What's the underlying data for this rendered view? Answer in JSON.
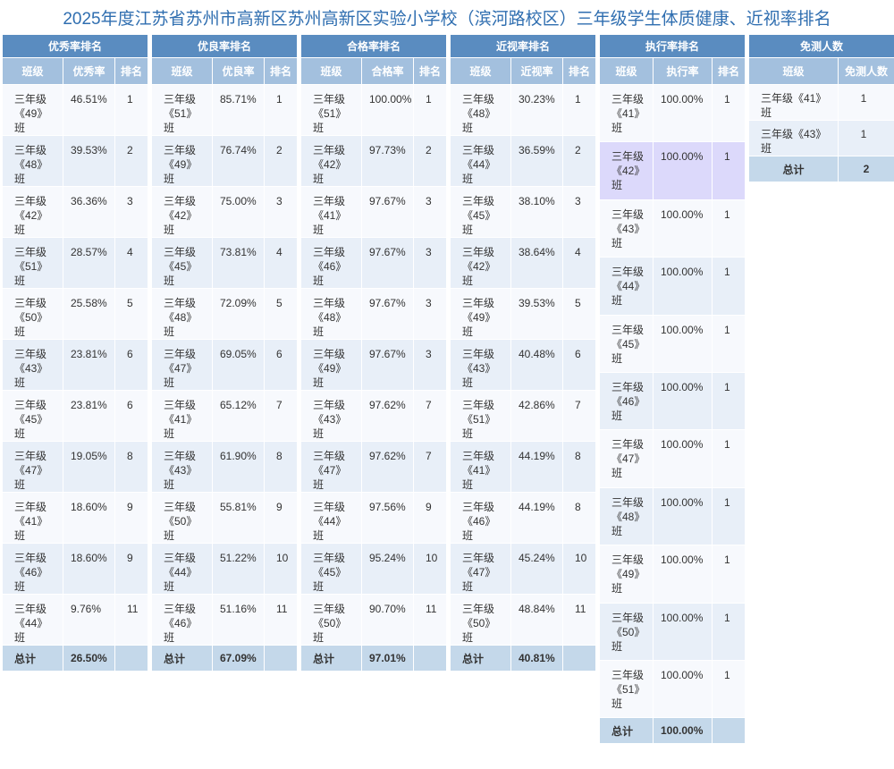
{
  "title": "2025年度江苏省苏州市高新区苏州高新区实验小学校（滨河路校区）三年级学生体质健康、近视率排名",
  "tables": [
    {
      "title": "优秀率排名",
      "headers": [
        "班级",
        "优秀率",
        "排名"
      ],
      "rows": [
        [
          "三年级《49》班",
          "46.51%",
          "1"
        ],
        [
          "三年级《48》班",
          "39.53%",
          "2"
        ],
        [
          "三年级《42》班",
          "36.36%",
          "3"
        ],
        [
          "三年级《51》班",
          "28.57%",
          "4"
        ],
        [
          "三年级《50》班",
          "25.58%",
          "5"
        ],
        [
          "三年级《43》班",
          "23.81%",
          "6"
        ],
        [
          "三年级《45》班",
          "23.81%",
          "6"
        ],
        [
          "三年级《47》班",
          "19.05%",
          "8"
        ],
        [
          "三年级《41》班",
          "18.60%",
          "9"
        ],
        [
          "三年级《46》班",
          "18.60%",
          "9"
        ],
        [
          "三年级《44》班",
          "9.76%",
          "11"
        ]
      ],
      "total": [
        "总计",
        "26.50%"
      ]
    },
    {
      "title": "优良率排名",
      "headers": [
        "班级",
        "优良率",
        "排名"
      ],
      "rows": [
        [
          "三年级《51》班",
          "85.71%",
          "1"
        ],
        [
          "三年级《49》班",
          "76.74%",
          "2"
        ],
        [
          "三年级《42》班",
          "75.00%",
          "3"
        ],
        [
          "三年级《45》班",
          "73.81%",
          "4"
        ],
        [
          "三年级《48》班",
          "72.09%",
          "5"
        ],
        [
          "三年级《47》班",
          "69.05%",
          "6"
        ],
        [
          "三年级《41》班",
          "65.12%",
          "7"
        ],
        [
          "三年级《43》班",
          "61.90%",
          "8"
        ],
        [
          "三年级《50》班",
          "55.81%",
          "9"
        ],
        [
          "三年级《44》班",
          "51.22%",
          "10"
        ],
        [
          "三年级《46》班",
          "51.16%",
          "11"
        ]
      ],
      "total": [
        "总计",
        "67.09%"
      ]
    },
    {
      "title": "合格率排名",
      "headers": [
        "班级",
        "合格率",
        "排名"
      ],
      "rows": [
        [
          "三年级《51》班",
          "100.00%",
          "1"
        ],
        [
          "三年级《42》班",
          "97.73%",
          "2"
        ],
        [
          "三年级《41》班",
          "97.67%",
          "3"
        ],
        [
          "三年级《46》班",
          "97.67%",
          "3"
        ],
        [
          "三年级《48》班",
          "97.67%",
          "3"
        ],
        [
          "三年级《49》班",
          "97.67%",
          "3"
        ],
        [
          "三年级《43》班",
          "97.62%",
          "7"
        ],
        [
          "三年级《47》班",
          "97.62%",
          "7"
        ],
        [
          "三年级《44》班",
          "97.56%",
          "9"
        ],
        [
          "三年级《45》班",
          "95.24%",
          "10"
        ],
        [
          "三年级《50》班",
          "90.70%",
          "11"
        ]
      ],
      "total": [
        "总计",
        "97.01%"
      ]
    },
    {
      "title": "近视率排名",
      "headers": [
        "班级",
        "近视率",
        "排名"
      ],
      "rows": [
        [
          "三年级《48》班",
          "30.23%",
          "1"
        ],
        [
          "三年级《44》班",
          "36.59%",
          "2"
        ],
        [
          "三年级《45》班",
          "38.10%",
          "3"
        ],
        [
          "三年级《42》班",
          "38.64%",
          "4"
        ],
        [
          "三年级《49》班",
          "39.53%",
          "5"
        ],
        [
          "三年级《43》班",
          "40.48%",
          "6"
        ],
        [
          "三年级《51》班",
          "42.86%",
          "7"
        ],
        [
          "三年级《41》班",
          "44.19%",
          "8"
        ],
        [
          "三年级《46》班",
          "44.19%",
          "8"
        ],
        [
          "三年级《47》班",
          "45.24%",
          "10"
        ],
        [
          "三年级《50》班",
          "48.84%",
          "11"
        ]
      ],
      "total": [
        "总计",
        "40.81%"
      ]
    },
    {
      "title": "执行率排名",
      "headers": [
        "班级",
        "执行率",
        "排名"
      ],
      "rows": [
        [
          "三年级《41》班",
          "100.00%",
          "1"
        ],
        [
          "三年级《42》班",
          "100.00%",
          "1"
        ],
        [
          "三年级《43》班",
          "100.00%",
          "1"
        ],
        [
          "三年级《44》班",
          "100.00%",
          "1"
        ],
        [
          "三年级《45》班",
          "100.00%",
          "1"
        ],
        [
          "三年级《46》班",
          "100.00%",
          "1"
        ],
        [
          "三年级《47》班",
          "100.00%",
          "1"
        ],
        [
          "三年级《48》班",
          "100.00%",
          "1"
        ],
        [
          "三年级《49》班",
          "100.00%",
          "1"
        ],
        [
          "三年级《50》班",
          "100.00%",
          "1"
        ],
        [
          "三年级《51》班",
          "100.00%",
          "1"
        ]
      ],
      "total": [
        "总计",
        "100.00%"
      ]
    },
    {
      "title": "免测人数",
      "headers": [
        "班级",
        "免测人数"
      ],
      "rows": [
        [
          "三年级《41》班",
          "1"
        ],
        [
          "三年级《43》班",
          "1"
        ]
      ],
      "total": [
        "总计",
        "2"
      ]
    }
  ]
}
